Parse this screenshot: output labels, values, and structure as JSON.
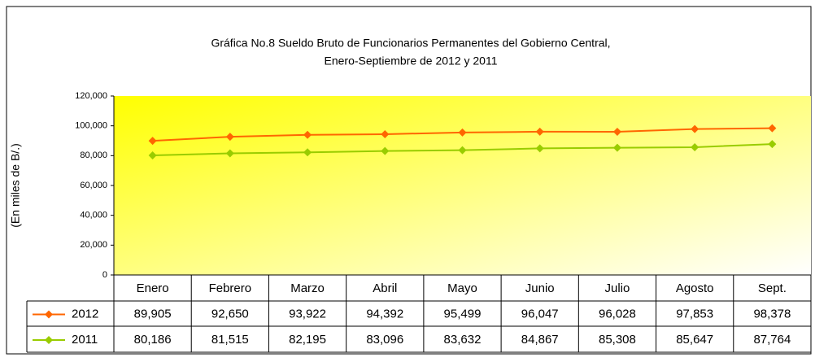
{
  "chart_data": {
    "type": "line",
    "title": [
      "Gráfica No.8 Sueldo Bruto de Funcionarios Permanentes del Gobierno Central,",
      "Enero-Septiembre de 2012 y 2011"
    ],
    "y_label": "(En miles de B/.)",
    "categories": [
      "Enero",
      "Febrero",
      "Marzo",
      "Abril",
      "Mayo",
      "Junio",
      "Julio",
      "Agosto",
      "Sept."
    ],
    "series": [
      {
        "name": "2012",
        "color": "#ff6600",
        "values": [
          89905,
          92650,
          93922,
          94392,
          95499,
          96047,
          96028,
          97853,
          98378
        ],
        "value_labels": [
          "89,905",
          "92,650",
          "93,922",
          "94,392",
          "95,499",
          "96,047",
          "96,028",
          "97,853",
          "98,378"
        ]
      },
      {
        "name": "2011",
        "color": "#99cc00",
        "values": [
          80186,
          81515,
          82195,
          83096,
          83632,
          84867,
          85308,
          85647,
          87764
        ],
        "value_labels": [
          "80,186",
          "81,515",
          "82,195",
          "83,096",
          "83,632",
          "84,867",
          "85,308",
          "85,647",
          "87,764"
        ]
      }
    ],
    "ylim": [
      0,
      120000
    ],
    "yticks": [
      0,
      {
        "value": 20000,
        "label": "20,000"
      },
      {
        "value": 40000,
        "label": "40,000"
      },
      {
        "value": 60000,
        "label": "60,000"
      },
      {
        "value": 80000,
        "label": "80,000"
      },
      {
        "value": 100000,
        "label": "100,000"
      },
      {
        "value": 120000,
        "label": "120,000"
      }
    ],
    "data_table": true
  }
}
